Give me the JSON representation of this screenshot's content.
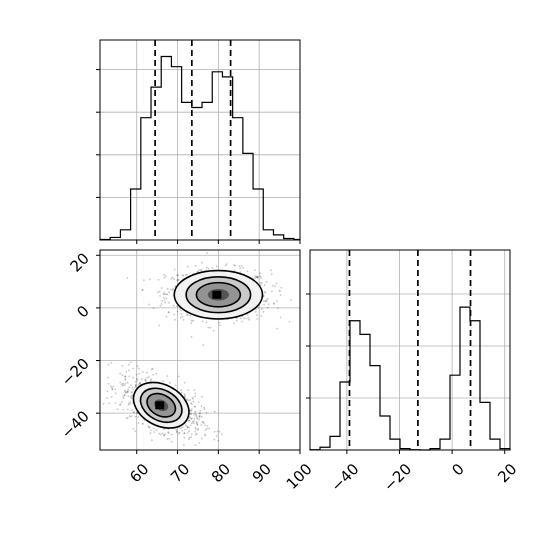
{
  "chart_data": {
    "type": "corner",
    "title": "",
    "panels": [
      {
        "panel": "marginal-x",
        "type": "histogram",
        "xlim": [
          51,
          100
        ],
        "grid": true,
        "bins_x": [
          51,
          53.5,
          56,
          58.5,
          61,
          63.5,
          66,
          68.5,
          71,
          73.5,
          76,
          78.5,
          81,
          83.5,
          86,
          88.5,
          91,
          93.5,
          96,
          98.5,
          100
        ],
        "counts": [
          1,
          5,
          20,
          100,
          240,
          300,
          360,
          340,
          270,
          260,
          270,
          330,
          320,
          240,
          170,
          100,
          20,
          10,
          3,
          1
        ],
        "quantiles": [
          64.5,
          73.5,
          83.0
        ]
      },
      {
        "panel": "joint",
        "type": "2d-density",
        "xlim": [
          51,
          100
        ],
        "ylim": [
          -54,
          22
        ],
        "grid": true,
        "xticks": [
          "60",
          "70",
          "80",
          "90",
          "100"
        ],
        "yticks": [
          "20",
          "0",
          "−20",
          "−40"
        ],
        "modes": [
          {
            "x": 80,
            "y": 5
          },
          {
            "x": 66,
            "y": -37
          }
        ]
      },
      {
        "panel": "marginal-y",
        "type": "histogram",
        "xlim": [
          -54,
          22
        ],
        "grid": true,
        "xticks": [
          "−40",
          "−20",
          "0",
          "20"
        ],
        "bins_x": [
          -54,
          -50.2,
          -46.4,
          -42.6,
          -38.8,
          -35,
          -31.2,
          -27.4,
          -23.6,
          -19.8,
          -16,
          -12.2,
          -8.4,
          -4.6,
          -0.8,
          3,
          6.8,
          10.6,
          14.4,
          18.2,
          22
        ],
        "counts": [
          0.02,
          0.2,
          1.0,
          5.0,
          9.5,
          8.5,
          6.2,
          2.5,
          0.8,
          0.1,
          0.02,
          0,
          0.1,
          0.8,
          5.5,
          10.5,
          9.5,
          3.5,
          0.8,
          0.1
        ],
        "quantiles": [
          -39.0,
          -13.0,
          7.0
        ]
      }
    ]
  },
  "colors": {
    "background": "#ffffff",
    "ink": "#000000",
    "grid": "#b0b0b0"
  }
}
